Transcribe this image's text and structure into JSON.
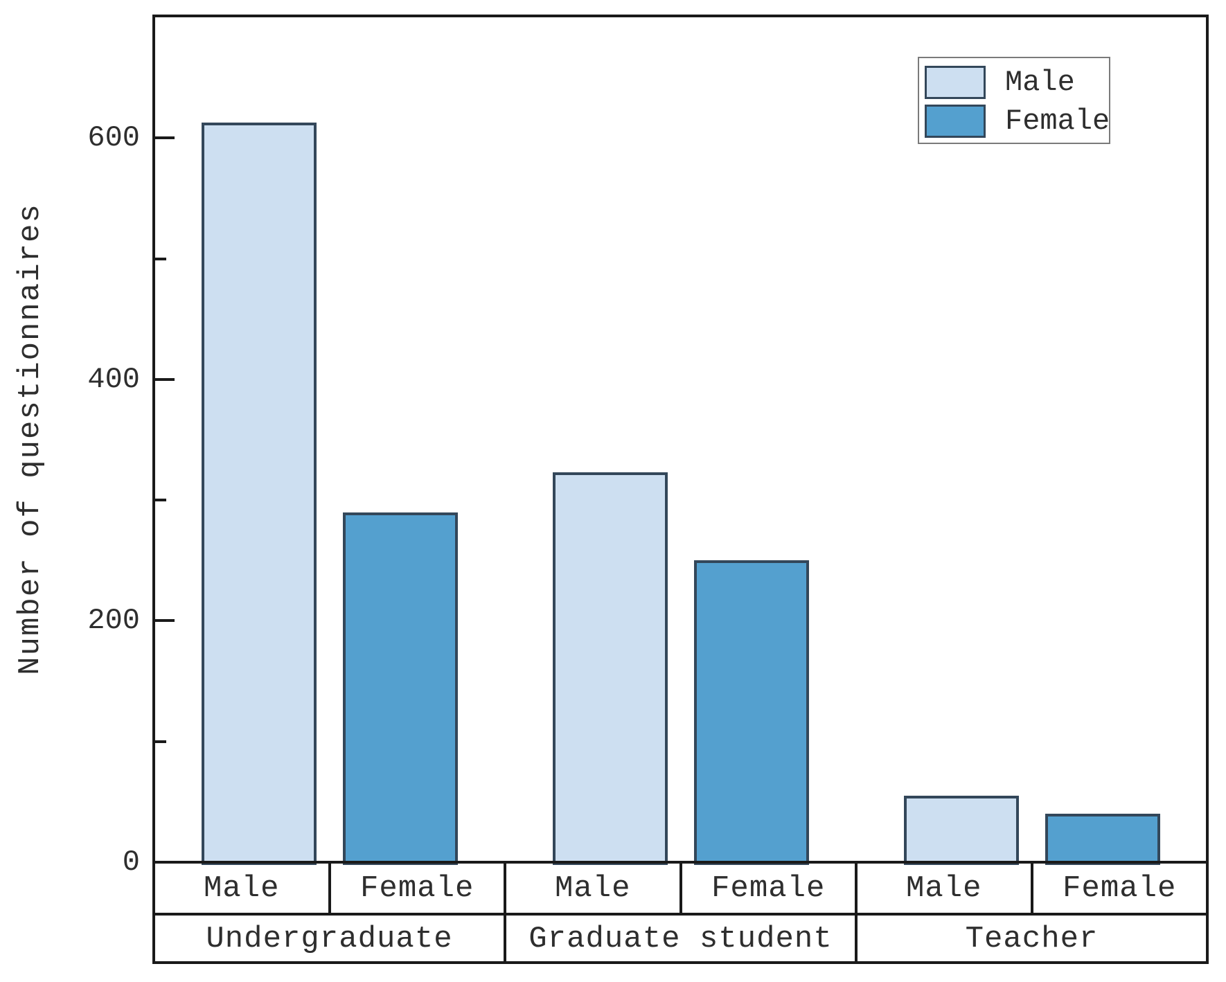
{
  "figure": {
    "background": "#ffffff"
  },
  "chart_data": {
    "type": "bar",
    "title": "",
    "xlabel": "",
    "ylabel": "Number of questionnaires",
    "categories": [
      "Undergraduate",
      "Graduate student",
      "Teacher"
    ],
    "sub_categories": [
      "Male",
      "Female"
    ],
    "series": [
      {
        "name": "Male",
        "values": [
          613,
          323,
          55
        ],
        "color": "#cddff1"
      },
      {
        "name": "Female",
        "values": [
          290,
          250,
          40
        ],
        "color": "#54a0cf"
      }
    ],
    "ylim": [
      0,
      700
    ],
    "yticks_major": [
      0,
      200,
      400,
      600
    ],
    "ytick_labels": [
      "0",
      "200",
      "400",
      "600"
    ],
    "yticks_minor": [
      100,
      300,
      500
    ],
    "grid": false,
    "legend_position": "upper right",
    "colors": {
      "bar_edge": "#33475a",
      "frame": "#1a1a1a",
      "text": "#2e2e2e",
      "legend_border": "#7a7a7a"
    }
  },
  "legend": {
    "items": [
      {
        "label": "Male"
      },
      {
        "label": "Female"
      }
    ]
  },
  "axis_table": {
    "row1": [
      "Male",
      "Female",
      "Male",
      "Female",
      "Male",
      "Female"
    ],
    "row2": [
      "Undergraduate",
      "Graduate student",
      "Teacher"
    ]
  }
}
